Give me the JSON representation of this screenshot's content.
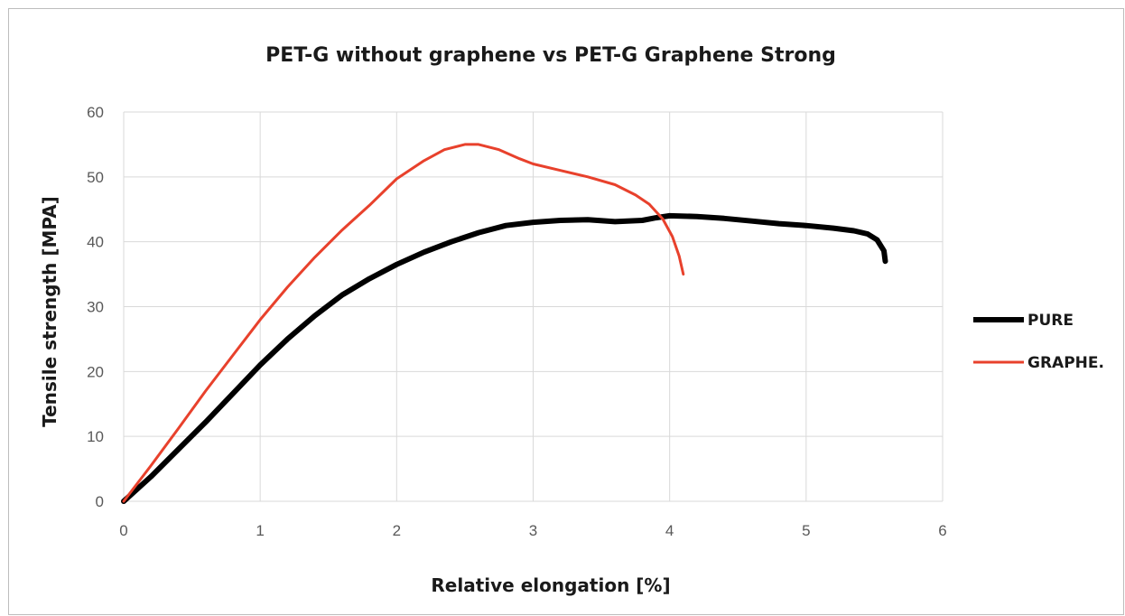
{
  "chart_data": {
    "type": "line",
    "title": "PET-G without graphene vs PET-G Graphene Strong",
    "xlabel": "Relative elongation [%]",
    "ylabel": "Tensile strength [MPA]",
    "xlim": [
      0,
      6
    ],
    "ylim": [
      0,
      60
    ],
    "x_ticks": [
      "0",
      "1",
      "2",
      "3",
      "4",
      "5",
      "6"
    ],
    "y_ticks": [
      "0",
      "10",
      "20",
      "30",
      "40",
      "50",
      "60"
    ],
    "grid": true,
    "legend_position": "right",
    "series": [
      {
        "name": "PURE",
        "color": "#000000",
        "points": [
          [
            0,
            0
          ],
          [
            0.2,
            3.8
          ],
          [
            0.4,
            8
          ],
          [
            0.6,
            12.2
          ],
          [
            0.8,
            16.6
          ],
          [
            1.0,
            21
          ],
          [
            1.2,
            25
          ],
          [
            1.4,
            28.6
          ],
          [
            1.6,
            31.8
          ],
          [
            1.8,
            34.3
          ],
          [
            2.0,
            36.5
          ],
          [
            2.2,
            38.4
          ],
          [
            2.4,
            40
          ],
          [
            2.6,
            41.4
          ],
          [
            2.8,
            42.5
          ],
          [
            3.0,
            43
          ],
          [
            3.2,
            43.3
          ],
          [
            3.4,
            43.4
          ],
          [
            3.6,
            43.1
          ],
          [
            3.8,
            43.3
          ],
          [
            3.9,
            43.7
          ],
          [
            4.0,
            44
          ],
          [
            4.2,
            43.9
          ],
          [
            4.4,
            43.6
          ],
          [
            4.6,
            43.2
          ],
          [
            4.8,
            42.8
          ],
          [
            5.0,
            42.5
          ],
          [
            5.2,
            42.1
          ],
          [
            5.35,
            41.7
          ],
          [
            5.45,
            41.2
          ],
          [
            5.52,
            40.3
          ],
          [
            5.57,
            38.6
          ],
          [
            5.58,
            37
          ]
        ]
      },
      {
        "name": "GRAPHE.",
        "color": "#e8412c",
        "points": [
          [
            0,
            0
          ],
          [
            0.2,
            5.5
          ],
          [
            0.4,
            11.2
          ],
          [
            0.6,
            17
          ],
          [
            0.8,
            22.5
          ],
          [
            1.0,
            28
          ],
          [
            1.2,
            33
          ],
          [
            1.4,
            37.6
          ],
          [
            1.6,
            41.8
          ],
          [
            1.8,
            45.6
          ],
          [
            2.0,
            49.7
          ],
          [
            2.2,
            52.5
          ],
          [
            2.35,
            54.2
          ],
          [
            2.5,
            55
          ],
          [
            2.6,
            55
          ],
          [
            2.75,
            54.2
          ],
          [
            2.9,
            52.8
          ],
          [
            3.0,
            52
          ],
          [
            3.2,
            51
          ],
          [
            3.4,
            50
          ],
          [
            3.6,
            48.8
          ],
          [
            3.75,
            47.2
          ],
          [
            3.85,
            45.8
          ],
          [
            3.95,
            43.5
          ],
          [
            4.02,
            40.8
          ],
          [
            4.07,
            37.8
          ],
          [
            4.1,
            35
          ]
        ]
      }
    ]
  }
}
